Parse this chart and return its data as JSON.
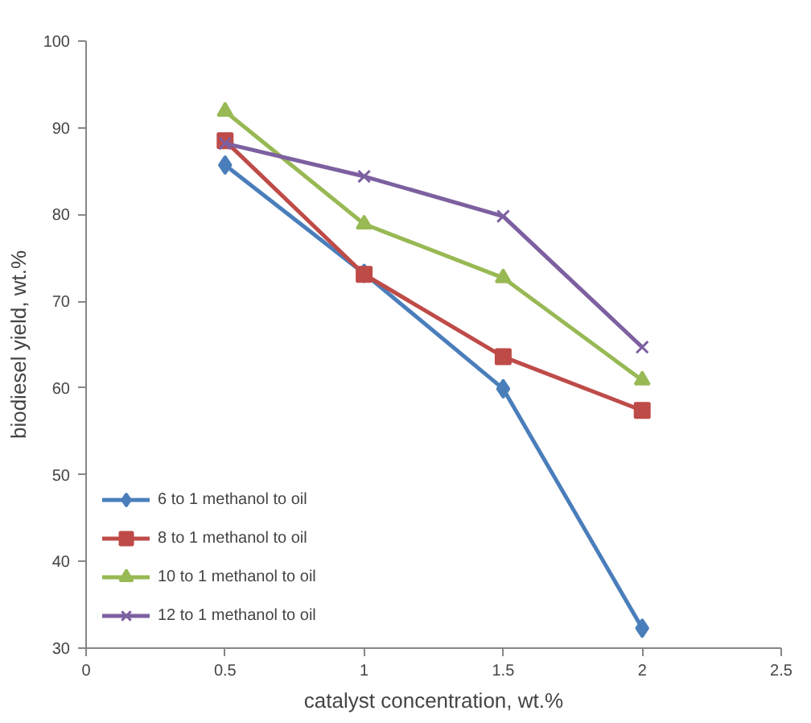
{
  "chart_data": {
    "type": "line",
    "xlabel": "catalyst concentration, wt.%",
    "ylabel": "biodiesel yield, wt.%",
    "x": [
      0.5,
      1,
      1.5,
      2
    ],
    "series": [
      {
        "name": "6 to 1 methanol to oil",
        "color": "#4a7ebb",
        "marker": "diamond",
        "values": [
          85.7,
          73.2,
          59.9,
          32.3
        ]
      },
      {
        "name": "8 to 1 methanol to oil",
        "color": "#be4b48",
        "marker": "square",
        "values": [
          88.5,
          73.1,
          63.6,
          57.4
        ]
      },
      {
        "name": "10 to 1 methanol to oil",
        "color": "#98b954",
        "marker": "triangle",
        "values": [
          91.9,
          78.9,
          72.7,
          60.9
        ]
      },
      {
        "name": "12 to 1 methanol to oil",
        "color": "#7d60a0",
        "marker": "cross",
        "values": [
          88.2,
          84.4,
          79.8,
          64.7
        ]
      }
    ],
    "xlim": [
      0,
      2.5
    ],
    "xticks": [
      0,
      0.5,
      1,
      1.5,
      2,
      2.5
    ],
    "ylim": [
      30,
      100
    ],
    "yticks": [
      30,
      40,
      50,
      60,
      70,
      80,
      90,
      100
    ],
    "grid": false,
    "legend": "bottom left",
    "line_style": "solid"
  }
}
